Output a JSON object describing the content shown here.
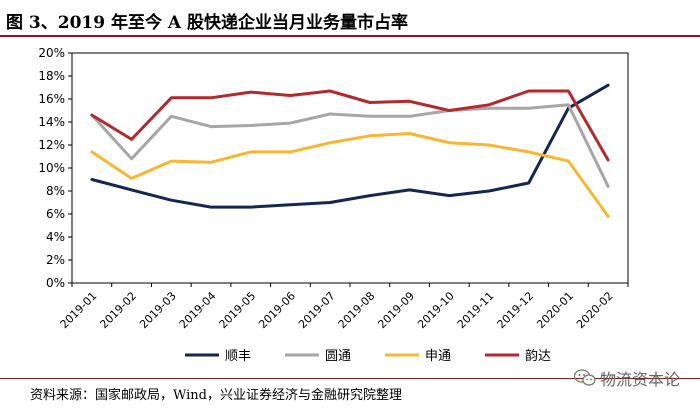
{
  "header": {
    "title": "图 3、2019 年至今 A 股快递企业当月业务量市占率"
  },
  "footer": {
    "source": "资料来源：国家邮政局，Wind，兴业证券经济与金融研究院整理"
  },
  "watermark": {
    "text": "物流资本论",
    "icon": "wechat-icon"
  },
  "chart_data": {
    "type": "line",
    "categories": [
      "2019-01",
      "2019-02",
      "2019-03",
      "2019-04",
      "2019-05",
      "2019-06",
      "2019-07",
      "2019-08",
      "2019-09",
      "2019-10",
      "2019-11",
      "2019-12",
      "2020-01",
      "2020-02"
    ],
    "y_ticks": [
      "0%",
      "2%",
      "4%",
      "6%",
      "8%",
      "10%",
      "12%",
      "14%",
      "16%",
      "18%",
      "20%"
    ],
    "ylim": [
      0,
      20
    ],
    "y_unit": "%",
    "grid": false,
    "legend_position": "bottom",
    "series": [
      {
        "name": "顺丰",
        "color": "#13274f",
        "values": [
          9.0,
          8.1,
          7.2,
          6.6,
          6.6,
          6.8,
          7.0,
          7.6,
          8.1,
          7.6,
          8.0,
          8.7,
          15.2,
          17.2
        ]
      },
      {
        "name": "圆通",
        "color": "#a6a6a6",
        "values": [
          14.6,
          10.8,
          14.5,
          13.6,
          13.7,
          13.9,
          14.7,
          14.5,
          14.5,
          15.0,
          15.2,
          15.2,
          15.5,
          8.4
        ]
      },
      {
        "name": "申通",
        "color": "#f7b731",
        "values": [
          11.4,
          9.1,
          10.6,
          10.5,
          11.4,
          11.4,
          12.2,
          12.8,
          13.0,
          12.2,
          12.0,
          11.4,
          10.6,
          5.8
        ]
      },
      {
        "name": "韵达",
        "color": "#b12a2e",
        "values": [
          14.6,
          12.5,
          16.1,
          16.1,
          16.6,
          16.3,
          16.7,
          15.7,
          15.8,
          15.0,
          15.5,
          16.7,
          16.7,
          10.7
        ]
      }
    ]
  }
}
